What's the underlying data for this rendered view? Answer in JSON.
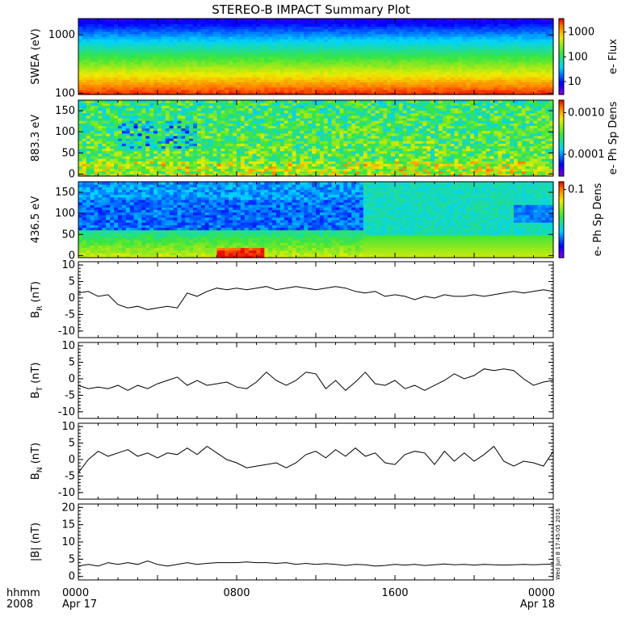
{
  "title": "STEREO-B IMPACT Summary Plot",
  "footer": {
    "row1_label": "hhmm",
    "row2_label": "2008",
    "ticks": [
      {
        "time": "0000",
        "date": "Apr 17",
        "hour": 0
      },
      {
        "time": "0800",
        "date": "",
        "hour": 8
      },
      {
        "time": "1600",
        "date": "",
        "hour": 16
      },
      {
        "time": "0000",
        "date": "Apr 18",
        "hour": 24
      }
    ]
  },
  "timestamp": "Wed Jun  8 17:45:05 2016",
  "chart_data": [
    {
      "type": "heatmap",
      "ylabel": "SWEA (eV)",
      "ylog": true,
      "ylim": [
        95,
        1900
      ],
      "yticks": [
        {
          "v": 100,
          "label": "100"
        },
        {
          "v": 1000,
          "label": "1000"
        }
      ],
      "colorbar": {
        "label": "e- Flux",
        "log": true,
        "range": [
          3,
          3500
        ],
        "ticks": [
          {
            "v": 10,
            "label": "10"
          },
          {
            "v": 100,
            "label": "100"
          },
          {
            "v": 1000,
            "label": "1000"
          }
        ]
      },
      "xlim": [
        0,
        24
      ]
    },
    {
      "type": "heatmap",
      "ylabel": "883.3 eV",
      "ylim": [
        -5,
        175
      ],
      "yticks": [
        {
          "v": 0,
          "label": "0"
        },
        {
          "v": 50,
          "label": "50"
        },
        {
          "v": 100,
          "label": "100"
        },
        {
          "v": 150,
          "label": "150"
        }
      ],
      "colorbar": {
        "label": "e- Ph Sp Dens",
        "log": true,
        "range": [
          3e-05,
          0.002
        ],
        "ticks": [
          {
            "v": 0.0001,
            "label": "0.0001"
          },
          {
            "v": 0.001,
            "label": "0.0010"
          }
        ]
      },
      "xlim": [
        0,
        24
      ]
    },
    {
      "type": "heatmap",
      "ylabel": "436.5 eV",
      "ylim": [
        -5,
        175
      ],
      "yticks": [
        {
          "v": 0,
          "label": "0"
        },
        {
          "v": 50,
          "label": "50"
        },
        {
          "v": 100,
          "label": "100"
        },
        {
          "v": 150,
          "label": "150"
        }
      ],
      "colorbar": {
        "label": "e- Ph Sp Dens",
        "log": true,
        "range": [
          0.02,
          0.12
        ],
        "ticks": [
          {
            "v": 0.1,
            "label": "0.1"
          }
        ]
      },
      "xlim": [
        0,
        24
      ]
    },
    {
      "type": "line",
      "ylabel": "B",
      "ylabel_sub": "R",
      "ylabel_unit": "(nT)",
      "ylim": [
        -12,
        11
      ],
      "yticks": [
        -10,
        -5,
        0,
        5,
        10
      ],
      "xlim": [
        0,
        24
      ],
      "series": [
        {
          "x": [
            0,
            0.5,
            1,
            1.5,
            2,
            2.5,
            3,
            3.5,
            4,
            4.5,
            5,
            5.5,
            6,
            6.5,
            7,
            7.5,
            8,
            8.5,
            9,
            9.5,
            10,
            10.5,
            11,
            11.5,
            12,
            12.5,
            13,
            13.5,
            14,
            14.5,
            15,
            15.5,
            16,
            16.5,
            17,
            17.5,
            18,
            18.5,
            19,
            19.5,
            20,
            20.5,
            21,
            21.5,
            22,
            22.5,
            23,
            23.5,
            24
          ],
          "y": [
            1.5,
            2,
            0.5,
            1,
            -2,
            -3,
            -2.5,
            -3.5,
            -3,
            -2.5,
            -3,
            1.5,
            0.5,
            2,
            3,
            2.5,
            3,
            2.5,
            3,
            3.5,
            2.5,
            3,
            3.5,
            3,
            2.5,
            3,
            3.5,
            3,
            2,
            1.5,
            2,
            0.5,
            1,
            0.5,
            -0.5,
            0.5,
            0,
            1,
            0.5,
            0.5,
            1,
            0.5,
            1,
            1.5,
            2,
            1.5,
            2,
            2.5,
            2
          ]
        }
      ]
    },
    {
      "type": "line",
      "ylabel": "B",
      "ylabel_sub": "T",
      "ylabel_unit": "(nT)",
      "ylim": [
        -12,
        11
      ],
      "yticks": [
        -10,
        -5,
        0,
        5,
        10
      ],
      "xlim": [
        0,
        24
      ],
      "series": [
        {
          "x": [
            0,
            0.5,
            1,
            1.5,
            2,
            2.5,
            3,
            3.5,
            4,
            4.5,
            5,
            5.5,
            6,
            6.5,
            7,
            7.5,
            8,
            8.5,
            9,
            9.5,
            10,
            10.5,
            11,
            11.5,
            12,
            12.5,
            13,
            13.5,
            14,
            14.5,
            15,
            15.5,
            16,
            16.5,
            17,
            17.5,
            18,
            18.5,
            19,
            19.5,
            20,
            20.5,
            21,
            21.5,
            22,
            22.5,
            23,
            23.5,
            24
          ],
          "y": [
            -2,
            -3,
            -2.5,
            -3,
            -2,
            -3.5,
            -2,
            -3,
            -1.5,
            -0.5,
            0.5,
            -2,
            -0.5,
            -2,
            -1.5,
            -1,
            -2.5,
            -3,
            -1,
            2,
            -0.5,
            -2,
            -0.5,
            2,
            1.5,
            -3,
            -0.5,
            -3.5,
            -1,
            2,
            -1.5,
            -2,
            -0.5,
            -3,
            -2,
            -3.5,
            -2,
            -0.5,
            1.5,
            0,
            1,
            3,
            2.5,
            3,
            2.5,
            0,
            -2,
            -1,
            -0.5
          ]
        }
      ]
    },
    {
      "type": "line",
      "ylabel": "B",
      "ylabel_sub": "N",
      "ylabel_unit": "(nT)",
      "ylim": [
        -12,
        11
      ],
      "yticks": [
        -10,
        -5,
        0,
        5,
        10
      ],
      "xlim": [
        0,
        24
      ],
      "series": [
        {
          "x": [
            0,
            0.5,
            1,
            1.5,
            2,
            2.5,
            3,
            3.5,
            4,
            4.5,
            5,
            5.5,
            6,
            6.5,
            7,
            7.5,
            8,
            8.5,
            9,
            9.5,
            10,
            10.5,
            11,
            11.5,
            12,
            12.5,
            13,
            13.5,
            14,
            14.5,
            15,
            15.5,
            16,
            16.5,
            17,
            17.5,
            18,
            18.5,
            19,
            19.5,
            20,
            20.5,
            21,
            21.5,
            22,
            22.5,
            23,
            23.5,
            24
          ],
          "y": [
            -4,
            0,
            2.5,
            1,
            2,
            3,
            1,
            2,
            0.5,
            2,
            1.5,
            3.5,
            1.5,
            4,
            2,
            0,
            -1,
            -2.5,
            -2,
            -1.5,
            -1,
            -2.5,
            -1,
            1.5,
            2.5,
            0.5,
            3,
            1,
            3.5,
            1,
            2,
            -1,
            -1.5,
            1.5,
            2.5,
            2,
            -1.5,
            2.5,
            -0.5,
            2,
            -0.5,
            1.5,
            4,
            -0.5,
            -2,
            -0.5,
            -1,
            -2,
            2.5
          ]
        }
      ]
    },
    {
      "type": "line",
      "ylabel": "|B| (nT)",
      "ylim": [
        -1,
        21
      ],
      "yticks": [
        0,
        5,
        10,
        15,
        20
      ],
      "xlim": [
        0,
        24
      ],
      "series": [
        {
          "x": [
            0,
            0.5,
            1,
            1.5,
            2,
            2.5,
            3,
            3.5,
            4,
            4.5,
            5,
            5.5,
            6,
            6.5,
            7,
            7.5,
            8,
            8.5,
            9,
            9.5,
            10,
            10.5,
            11,
            11.5,
            12,
            12.5,
            13,
            13.5,
            14,
            14.5,
            15,
            15.5,
            16,
            16.5,
            17,
            17.5,
            18,
            18.5,
            19,
            19.5,
            20,
            20.5,
            21,
            21.5,
            22,
            22.5,
            23,
            23.5,
            24
          ],
          "y": [
            3,
            3.5,
            3,
            4,
            3.5,
            4,
            3.5,
            4.5,
            3.5,
            3,
            3.5,
            4,
            3.5,
            3.8,
            4,
            4,
            4,
            4.2,
            4,
            4,
            3.8,
            4,
            3.5,
            3.8,
            3.5,
            3.7,
            3.5,
            3.2,
            3.5,
            3.4,
            3,
            3.2,
            3.5,
            3.3,
            3.5,
            3.2,
            3.4,
            3.6,
            3.4,
            3.5,
            3.3,
            3.5,
            3.4,
            3.3,
            3.4,
            3.5,
            3.4,
            3.5,
            3.6
          ]
        }
      ]
    }
  ]
}
